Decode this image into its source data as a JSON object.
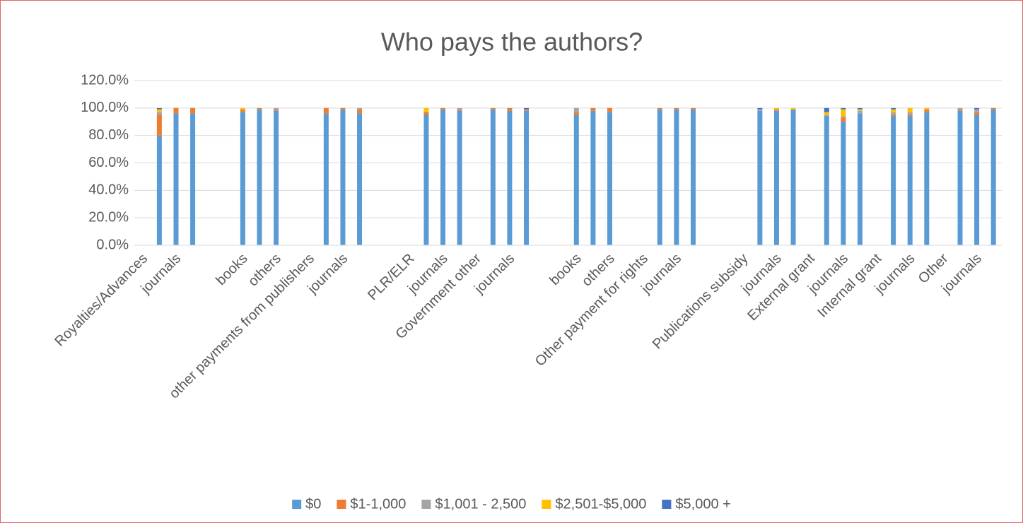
{
  "chart_data": {
    "type": "bar",
    "stacked": true,
    "title": "Who pays the authors?",
    "categories": [
      "Royalties/Advances",
      null,
      "journals",
      null,
      null,
      null,
      "books",
      null,
      "others",
      null,
      "other payments from publishers",
      null,
      "journals",
      null,
      null,
      null,
      "PLR/ELR",
      null,
      "journals",
      null,
      "Government other",
      null,
      "journals",
      null,
      null,
      null,
      "books",
      null,
      "others",
      null,
      "Other payment for rights",
      null,
      "journals",
      null,
      null,
      null,
      "Publications subsidy",
      null,
      "journals",
      null,
      "External grant",
      null,
      "journals",
      null,
      "Internal grant",
      null,
      "journals",
      null,
      "Other",
      null,
      "journals",
      null
    ],
    "series": [
      {
        "name": "$0",
        "color": "#5b9bd5",
        "values": [
          null,
          80,
          96,
          96,
          null,
          null,
          97,
          99,
          98,
          null,
          null,
          96,
          99,
          96,
          null,
          null,
          null,
          95,
          99,
          98,
          null,
          99,
          98,
          98,
          null,
          null,
          95,
          98,
          97,
          null,
          null,
          99,
          99,
          99,
          null,
          null,
          null,
          98,
          98,
          99,
          null,
          94,
          90,
          96,
          null,
          94,
          94,
          97,
          null,
          98,
          95,
          99
        ]
      },
      {
        "name": "$1-1,000",
        "color": "#ed7d31",
        "values": [
          null,
          15,
          4,
          4,
          null,
          null,
          2,
          1,
          1,
          null,
          null,
          4,
          1,
          3,
          null,
          null,
          null,
          2,
          1,
          1,
          null,
          1,
          2,
          1,
          null,
          null,
          2,
          2,
          3,
          null,
          null,
          1,
          1,
          1,
          null,
          null,
          null,
          0,
          1,
          0,
          null,
          0,
          3,
          0,
          null,
          1,
          1,
          2,
          null,
          1,
          2,
          1
        ]
      },
      {
        "name": "$1,001 - 2,500",
        "color": "#a5a5a5",
        "values": [
          null,
          2,
          0,
          0,
          null,
          null,
          0,
          0,
          1,
          null,
          null,
          0,
          0,
          1,
          null,
          null,
          null,
          0,
          0,
          1,
          null,
          0,
          0,
          0,
          null,
          null,
          3,
          0,
          0,
          null,
          null,
          0,
          0,
          0,
          null,
          null,
          null,
          1,
          0,
          0,
          null,
          1,
          1,
          2,
          null,
          2,
          2,
          0,
          null,
          1,
          2,
          0
        ]
      },
      {
        "name": "$2,501-$5,000",
        "color": "#ffc000",
        "values": [
          null,
          2,
          0,
          0,
          null,
          null,
          1,
          0,
          0,
          null,
          null,
          0,
          0,
          0,
          null,
          null,
          null,
          3,
          0,
          0,
          null,
          0,
          0,
          0,
          null,
          null,
          0,
          0,
          0,
          null,
          null,
          0,
          0,
          0,
          null,
          null,
          null,
          0,
          1,
          1,
          null,
          2,
          5,
          1,
          null,
          2,
          3,
          1,
          null,
          0,
          0,
          0
        ]
      },
      {
        "name": "$5,000 +",
        "color": "#4472c4",
        "values": [
          null,
          1,
          0,
          0,
          null,
          null,
          0,
          0,
          0,
          null,
          null,
          0,
          0,
          0,
          null,
          null,
          null,
          0,
          0,
          0,
          null,
          0,
          0,
          1,
          null,
          null,
          0,
          0,
          0,
          null,
          null,
          0,
          0,
          0,
          null,
          null,
          null,
          1,
          0,
          0,
          null,
          3,
          1,
          1,
          null,
          1,
          0,
          0,
          null,
          0,
          1,
          0
        ]
      }
    ],
    "ylim": [
      0,
      120
    ],
    "yticks": [
      {
        "value": 0,
        "label": "0.0%"
      },
      {
        "value": 20,
        "label": "20.0%"
      },
      {
        "value": 40,
        "label": "40.0%"
      },
      {
        "value": 60,
        "label": "60.0%"
      },
      {
        "value": 80,
        "label": "80.0%"
      },
      {
        "value": 100,
        "label": "100.0%"
      },
      {
        "value": 120,
        "label": "120.0%"
      }
    ],
    "grid": true,
    "legend": "bottom"
  }
}
